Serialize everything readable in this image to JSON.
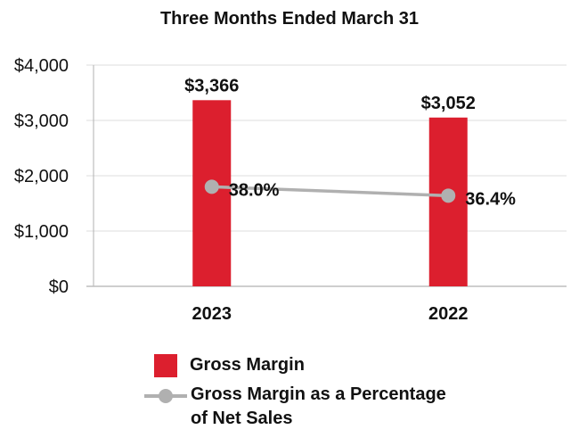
{
  "chart_data": {
    "type": "bar",
    "title": "Three Months Ended March 31",
    "categories": [
      "2023",
      "2022"
    ],
    "series": [
      {
        "name": "Gross Margin",
        "type": "bar",
        "values": [
          3366,
          3052
        ],
        "labels": [
          "$3,366",
          "$3,052"
        ],
        "color": "#dc1f2e"
      },
      {
        "name": "Gross Margin as a Percentage of Net Sales",
        "type": "line",
        "values": [
          38.0,
          36.4
        ],
        "labels": [
          "38.0%",
          "36.4%"
        ],
        "color": "#b0b0b0"
      }
    ],
    "y_axis": {
      "ylim": [
        0,
        4000
      ],
      "ticks": [
        0,
        1000,
        2000,
        3000,
        4000
      ],
      "tick_labels": [
        "$0",
        "$1,000",
        "$2,000",
        "$3,000",
        "$4,000"
      ]
    },
    "secondary_axis": {
      "ylim": [
        20,
        60
      ],
      "shown": false
    },
    "grid": true,
    "legend_position": "bottom"
  }
}
